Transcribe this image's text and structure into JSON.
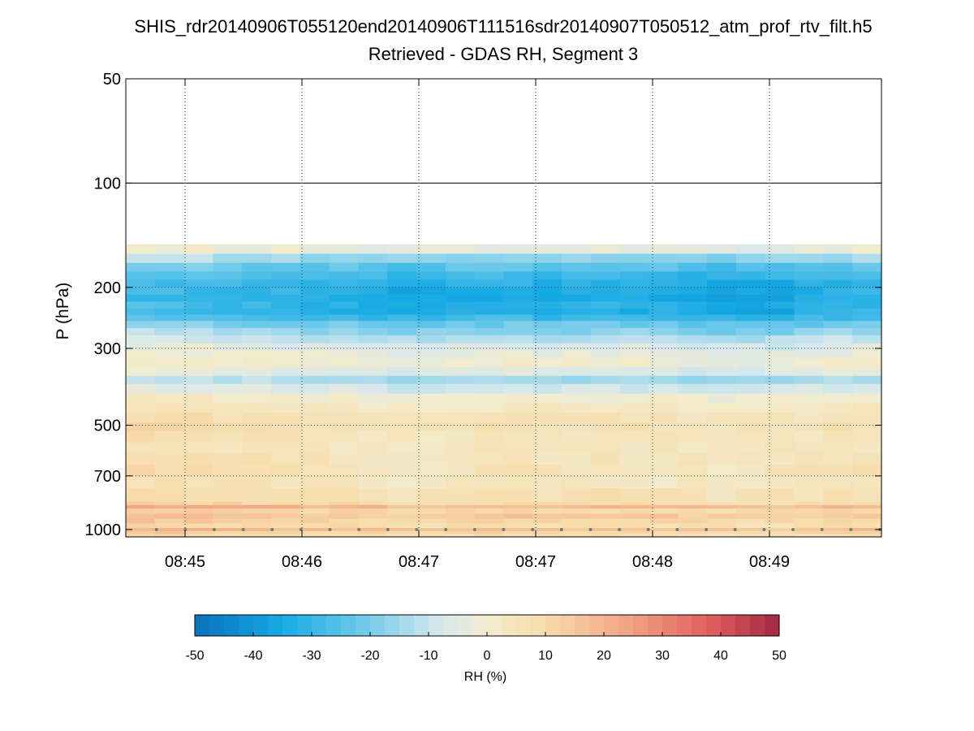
{
  "title_line1": "SHIS_rdr20140906T055120end20140906T111516sdr20140907T050512_atm_prof_rtv_filt.h5",
  "title_line2": "Retrieved - GDAS RH, Segment 3",
  "chart_data": {
    "type": "heatmap",
    "title": "Retrieved - GDAS RH, Segment 3",
    "xlabel": "",
    "ylabel": "P (hPa)",
    "y_scale": "log",
    "y_reversed": true,
    "ylim": [
      1050,
      50
    ],
    "y_ticks": [
      50,
      100,
      200,
      300,
      500,
      700,
      1000
    ],
    "x_tick_labels": [
      "08:45",
      "08:46",
      "08:47",
      "08:47",
      "08:48",
      "08:49"
    ],
    "grid": true,
    "n_columns": 26,
    "data_top_pressure": 150,
    "layer_pressures": [
      150,
      160,
      170,
      180,
      190,
      200,
      210,
      220,
      230,
      240,
      250,
      262,
      275,
      290,
      305,
      320,
      340,
      360,
      380,
      405,
      430,
      460,
      490,
      520,
      560,
      600,
      650,
      700,
      760,
      830,
      850,
      870,
      900,
      930,
      960,
      990,
      1010,
      1030
    ],
    "rh_profile": [
      -2,
      -14,
      -22,
      -27,
      -30,
      -31,
      -32,
      -30,
      -31,
      -27,
      -20,
      -15,
      -10,
      -5,
      -2,
      1,
      -4,
      -12,
      -6,
      1,
      4,
      7,
      8,
      6,
      5,
      6,
      7,
      5,
      8,
      11,
      20,
      12,
      16,
      13,
      10,
      18,
      12,
      8
    ],
    "column_offsets": [
      3,
      2,
      2,
      1,
      0,
      0,
      -1,
      -1,
      -2,
      -3,
      -3,
      -2,
      -1,
      -1,
      -2,
      -2,
      -1,
      -2,
      -2,
      -3,
      -4,
      -4,
      -3,
      -2,
      -1,
      0
    ],
    "layer_noise_seed": 7,
    "colorbar": {
      "label": "RH (%)",
      "min": -50,
      "max": 50,
      "ticks": [
        "-50",
        "-40",
        "-30",
        "-20",
        "-10",
        "0",
        "10",
        "20",
        "30",
        "40",
        "50"
      ]
    }
  }
}
